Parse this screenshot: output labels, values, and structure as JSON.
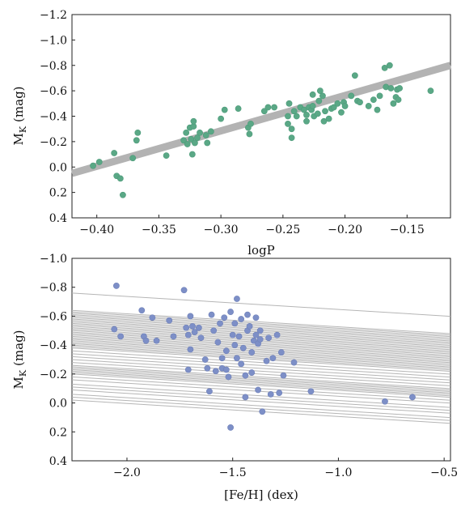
{
  "chart_data": [
    {
      "type": "scatter",
      "xlabel": "logP",
      "ylabel": "M",
      "ylabel_sub": "K",
      "ylabel_unit": "(mag)",
      "xlim": [
        -0.42,
        -0.115
      ],
      "ylim": [
        0.4,
        -1.2
      ],
      "y_inverted": true,
      "grid": false,
      "x_ticks": [
        -0.4,
        -0.35,
        -0.3,
        -0.25,
        -0.2,
        -0.15
      ],
      "x_tick_labels": [
        "−0.40",
        "−0.35",
        "−0.30",
        "−0.25",
        "−0.20",
        "−0.15"
      ],
      "y_ticks": [
        -1.2,
        -1.0,
        -0.8,
        -0.6,
        -0.4,
        -0.2,
        0.0,
        0.2,
        0.4
      ],
      "y_tick_labels": [
        "−1.2",
        "−1.0",
        "−0.8",
        "−0.6",
        "−0.4",
        "−0.2",
        "0.0",
        "0.2",
        "0.4"
      ],
      "points_color": "#5aa886",
      "fit_band": {
        "color": "#b3b3b3",
        "x": [
          -0.42,
          -0.115
        ],
        "y": [
          0.05,
          -0.8
        ]
      },
      "points": [
        [
          -0.403,
          -0.01
        ],
        [
          -0.398,
          -0.04
        ],
        [
          -0.386,
          -0.11
        ],
        [
          -0.384,
          0.07
        ],
        [
          -0.381,
          0.09
        ],
        [
          -0.379,
          0.22
        ],
        [
          -0.371,
          -0.07
        ],
        [
          -0.368,
          -0.21
        ],
        [
          -0.367,
          -0.27
        ],
        [
          -0.344,
          -0.09
        ],
        [
          -0.33,
          -0.21
        ],
        [
          -0.328,
          -0.27
        ],
        [
          -0.327,
          -0.18
        ],
        [
          -0.325,
          -0.31
        ],
        [
          -0.324,
          -0.22
        ],
        [
          -0.323,
          -0.1
        ],
        [
          -0.322,
          -0.32
        ],
        [
          -0.322,
          -0.36
        ],
        [
          -0.321,
          -0.19
        ],
        [
          -0.319,
          -0.23
        ],
        [
          -0.317,
          -0.27
        ],
        [
          -0.312,
          -0.25
        ],
        [
          -0.311,
          -0.19
        ],
        [
          -0.308,
          -0.28
        ],
        [
          -0.3,
          -0.38
        ],
        [
          -0.297,
          -0.45
        ],
        [
          -0.286,
          -0.46
        ],
        [
          -0.278,
          -0.31
        ],
        [
          -0.277,
          -0.26
        ],
        [
          -0.276,
          -0.34
        ],
        [
          -0.265,
          -0.44
        ],
        [
          -0.262,
          -0.47
        ],
        [
          -0.257,
          -0.47
        ],
        [
          -0.246,
          -0.34
        ],
        [
          -0.246,
          -0.4
        ],
        [
          -0.245,
          -0.5
        ],
        [
          -0.243,
          -0.3
        ],
        [
          -0.243,
          -0.23
        ],
        [
          -0.241,
          -0.44
        ],
        [
          -0.239,
          -0.4
        ],
        [
          -0.236,
          -0.47
        ],
        [
          -0.233,
          -0.45
        ],
        [
          -0.231,
          -0.41
        ],
        [
          -0.231,
          -0.36
        ],
        [
          -0.229,
          -0.47
        ],
        [
          -0.227,
          -0.45
        ],
        [
          -0.226,
          -0.48
        ],
        [
          -0.226,
          -0.57
        ],
        [
          -0.225,
          -0.4
        ],
        [
          -0.222,
          -0.42
        ],
        [
          -0.221,
          -0.52
        ],
        [
          -0.22,
          -0.6
        ],
        [
          -0.218,
          -0.56
        ],
        [
          -0.217,
          -0.36
        ],
        [
          -0.216,
          -0.44
        ],
        [
          -0.213,
          -0.38
        ],
        [
          -0.211,
          -0.46
        ],
        [
          -0.209,
          -0.47
        ],
        [
          -0.206,
          -0.5
        ],
        [
          -0.203,
          -0.43
        ],
        [
          -0.201,
          -0.51
        ],
        [
          -0.2,
          -0.48
        ],
        [
          -0.195,
          -0.56
        ],
        [
          -0.192,
          -0.72
        ],
        [
          -0.19,
          -0.52
        ],
        [
          -0.188,
          -0.51
        ],
        [
          -0.181,
          -0.48
        ],
        [
          -0.177,
          -0.53
        ],
        [
          -0.174,
          -0.45
        ],
        [
          -0.172,
          -0.56
        ],
        [
          -0.168,
          -0.78
        ],
        [
          -0.167,
          -0.63
        ],
        [
          -0.164,
          -0.8
        ],
        [
          -0.163,
          -0.62
        ],
        [
          -0.161,
          -0.5
        ],
        [
          -0.159,
          -0.55
        ],
        [
          -0.158,
          -0.61
        ],
        [
          -0.157,
          -0.53
        ],
        [
          -0.156,
          -0.62
        ],
        [
          -0.131,
          -0.6
        ]
      ]
    },
    {
      "type": "scatter",
      "xlabel": "[Fe/H] (dex)",
      "ylabel": "M",
      "ylabel_sub": "K",
      "ylabel_unit": "(mag)",
      "xlim": [
        -2.26,
        -0.47
      ],
      "ylim": [
        0.4,
        -1.0
      ],
      "y_inverted": true,
      "grid": false,
      "x_ticks": [
        -2.0,
        -1.5,
        -1.0,
        -0.5
      ],
      "x_tick_labels": [
        "−2.0",
        "−1.5",
        "−1.0",
        "−0.5"
      ],
      "y_ticks": [
        -1.0,
        -0.8,
        -0.6,
        -0.4,
        -0.2,
        0.0,
        0.2,
        0.4
      ],
      "y_tick_labels": [
        "−1.0",
        "−0.8",
        "−0.6",
        "−0.4",
        "−0.2",
        "0.0",
        "0.2",
        "0.4"
      ],
      "points_color": "#7d8fc7",
      "fit_lines": {
        "color": "#b5b5b5",
        "x": [
          -2.26,
          -0.47
        ],
        "intercepts": [
          -0.76,
          -0.64,
          -0.63,
          -0.62,
          -0.61,
          -0.6,
          -0.59,
          -0.58,
          -0.57,
          -0.56,
          -0.55,
          -0.54,
          -0.53,
          -0.52,
          -0.51,
          -0.5,
          -0.49,
          -0.48,
          -0.47,
          -0.46,
          -0.45,
          -0.44,
          -0.43,
          -0.42,
          -0.41,
          -0.4,
          -0.39,
          -0.38,
          -0.36,
          -0.34,
          -0.32,
          -0.3,
          -0.28,
          -0.26,
          -0.25,
          -0.24,
          -0.23,
          -0.22,
          -0.21,
          -0.2,
          -0.18,
          -0.16,
          -0.13,
          -0.11,
          -0.09,
          -0.06,
          -0.04,
          -0.02
        ],
        "slope": 0.09
      },
      "points": [
        [
          -2.05,
          -0.81
        ],
        [
          -2.06,
          -0.51
        ],
        [
          -2.03,
          -0.46
        ],
        [
          -1.93,
          -0.64
        ],
        [
          -1.92,
          -0.46
        ],
        [
          -1.91,
          -0.43
        ],
        [
          -1.88,
          -0.59
        ],
        [
          -1.86,
          -0.43
        ],
        [
          -1.8,
          -0.57
        ],
        [
          -1.78,
          -0.46
        ],
        [
          -1.73,
          -0.78
        ],
        [
          -1.72,
          -0.52
        ],
        [
          -1.71,
          -0.47
        ],
        [
          -1.71,
          -0.23
        ],
        [
          -1.7,
          -0.6
        ],
        [
          -1.7,
          -0.37
        ],
        [
          -1.69,
          -0.53
        ],
        [
          -1.68,
          -0.49
        ],
        [
          -1.66,
          -0.52
        ],
        [
          -1.65,
          -0.45
        ],
        [
          -1.63,
          -0.3
        ],
        [
          -1.62,
          -0.24
        ],
        [
          -1.61,
          -0.08
        ],
        [
          -1.6,
          -0.61
        ],
        [
          -1.59,
          -0.5
        ],
        [
          -1.58,
          -0.22
        ],
        [
          -1.57,
          -0.42
        ],
        [
          -1.56,
          -0.55
        ],
        [
          -1.55,
          -0.31
        ],
        [
          -1.55,
          -0.24
        ],
        [
          -1.54,
          -0.59
        ],
        [
          -1.53,
          -0.36
        ],
        [
          -1.53,
          -0.23
        ],
        [
          -1.52,
          -0.18
        ],
        [
          -1.51,
          -0.63
        ],
        [
          -1.51,
          0.17
        ],
        [
          -1.5,
          -0.47
        ],
        [
          -1.49,
          -0.55
        ],
        [
          -1.49,
          -0.4
        ],
        [
          -1.48,
          -0.31
        ],
        [
          -1.48,
          -0.72
        ],
        [
          -1.47,
          -0.46
        ],
        [
          -1.46,
          -0.58
        ],
        [
          -1.46,
          -0.27
        ],
        [
          -1.45,
          -0.38
        ],
        [
          -1.44,
          -0.19
        ],
        [
          -1.44,
          -0.04
        ],
        [
          -1.43,
          -0.61
        ],
        [
          -1.43,
          -0.5
        ],
        [
          -1.42,
          -0.53
        ],
        [
          -1.41,
          -0.35
        ],
        [
          -1.41,
          -0.21
        ],
        [
          -1.4,
          -0.43
        ],
        [
          -1.39,
          -0.59
        ],
        [
          -1.39,
          -0.47
        ],
        [
          -1.38,
          -0.41
        ],
        [
          -1.38,
          -0.09
        ],
        [
          -1.37,
          -0.44
        ],
        [
          -1.37,
          -0.5
        ],
        [
          -1.36,
          0.06
        ],
        [
          -1.34,
          -0.29
        ],
        [
          -1.33,
          -0.45
        ],
        [
          -1.32,
          -0.06
        ],
        [
          -1.31,
          -0.31
        ],
        [
          -1.29,
          -0.47
        ],
        [
          -1.28,
          -0.07
        ],
        [
          -1.27,
          -0.35
        ],
        [
          -1.26,
          -0.19
        ],
        [
          -1.21,
          -0.28
        ],
        [
          -1.13,
          -0.08
        ],
        [
          -0.78,
          -0.01
        ],
        [
          -0.65,
          -0.04
        ]
      ]
    }
  ]
}
